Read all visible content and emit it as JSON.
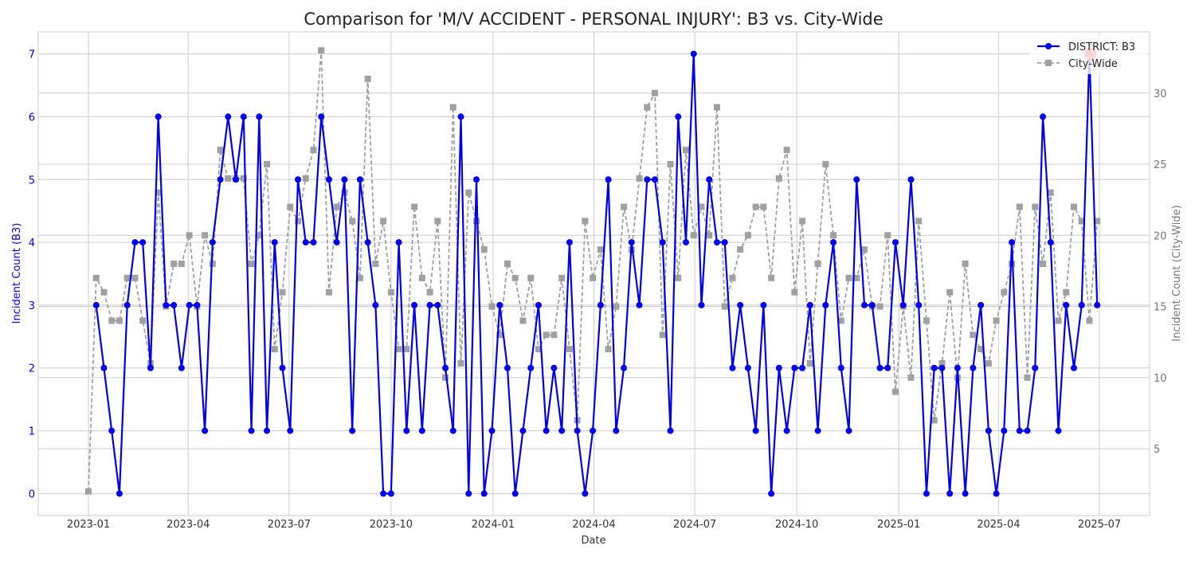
{
  "chart_data": {
    "type": "line",
    "title": "Comparison for 'M/V ACCIDENT - PERSONAL INJURY': B3 vs. City-Wide",
    "xlabel": "Date",
    "ylabel_left": "Incident Count (B3)",
    "ylabel_right": "Incident Count (City-Wide)",
    "x_ticks": [
      "2023-01",
      "2023-04",
      "2023-07",
      "2023-10",
      "2024-01",
      "2024-04",
      "2024-07",
      "2024-10",
      "2025-01",
      "2025-04",
      "2025-07"
    ],
    "y_left_ticks": [
      "0",
      "1",
      "2",
      "3",
      "4",
      "5",
      "6",
      "7"
    ],
    "y_right_ticks": [
      "5",
      "10",
      "15",
      "20",
      "25",
      "30"
    ],
    "y_left_lim": [
      -0.35,
      7.35
    ],
    "y_right_lim": [
      0.3,
      34.3
    ],
    "x_start": "2023-01-01",
    "x_end": "2025-07-01",
    "grid": true,
    "legend_position": "top-right",
    "colors": {
      "district": "#0000ee",
      "citywide": "#a0a0a0",
      "highlight": "#ee2222"
    },
    "series": [
      {
        "name": "DISTRICT: B3",
        "axis": "left",
        "values": [
          3,
          2,
          1,
          0,
          3,
          4,
          4,
          2,
          6,
          3,
          3,
          2,
          3,
          3,
          1,
          4,
          5,
          6,
          5,
          6,
          1,
          6,
          1,
          4,
          2,
          1,
          5,
          4,
          4,
          6,
          5,
          4,
          5,
          1,
          5,
          4,
          3,
          0,
          0,
          4,
          1,
          3,
          1,
          3,
          3,
          2,
          1,
          6,
          0,
          5,
          0,
          1,
          3,
          2,
          0,
          1,
          2,
          3,
          1,
          2,
          1,
          4,
          1,
          0,
          1,
          3,
          5,
          1,
          2,
          4,
          3,
          5,
          5,
          4,
          1,
          6,
          4,
          7,
          3,
          5,
          4,
          4,
          2,
          3,
          2,
          1,
          3,
          0,
          2,
          1,
          2,
          2,
          3,
          1,
          3,
          4,
          2,
          1,
          5,
          3,
          3,
          2,
          2,
          4,
          3,
          5,
          3,
          0,
          2,
          2,
          0,
          2,
          0,
          2,
          3,
          1,
          0,
          1,
          4,
          1,
          1,
          2,
          6,
          4,
          1,
          3,
          2,
          3,
          7,
          3
        ]
      },
      {
        "name": "City-Wide",
        "axis": "right",
        "values": [
          2,
          17,
          16,
          14,
          14,
          17,
          17,
          14,
          11,
          23,
          15,
          18,
          18,
          20,
          15,
          20,
          18,
          26,
          24,
          24,
          24,
          18,
          20,
          25,
          12,
          16,
          22,
          21,
          24,
          26,
          33,
          16,
          22,
          23,
          21,
          17,
          31,
          18,
          21,
          16,
          12,
          12,
          22,
          17,
          16,
          21,
          10,
          29,
          11,
          23,
          21,
          19,
          15,
          13,
          18,
          17,
          14,
          17,
          12,
          13,
          13,
          17,
          12,
          7,
          21,
          17,
          19,
          12,
          15,
          22,
          19,
          24,
          29,
          30,
          13,
          25,
          17,
          26,
          20,
          22,
          20,
          29,
          15,
          17,
          19,
          20,
          22,
          22,
          17,
          24,
          26,
          16,
          21,
          11,
          18,
          25,
          20,
          14,
          17,
          17,
          19,
          15,
          15,
          20,
          9,
          15,
          10,
          21,
          14,
          7,
          11,
          16,
          10,
          18,
          13,
          12,
          11,
          14,
          16,
          18,
          22,
          10,
          22,
          18,
          23,
          14,
          16,
          22,
          21,
          14,
          21
        ]
      }
    ],
    "highlight_point": {
      "date": "2025-06-23",
      "value": 7
    },
    "legend": [
      {
        "label": "DISTRICT: B3"
      },
      {
        "label": "City-Wide"
      }
    ]
  }
}
